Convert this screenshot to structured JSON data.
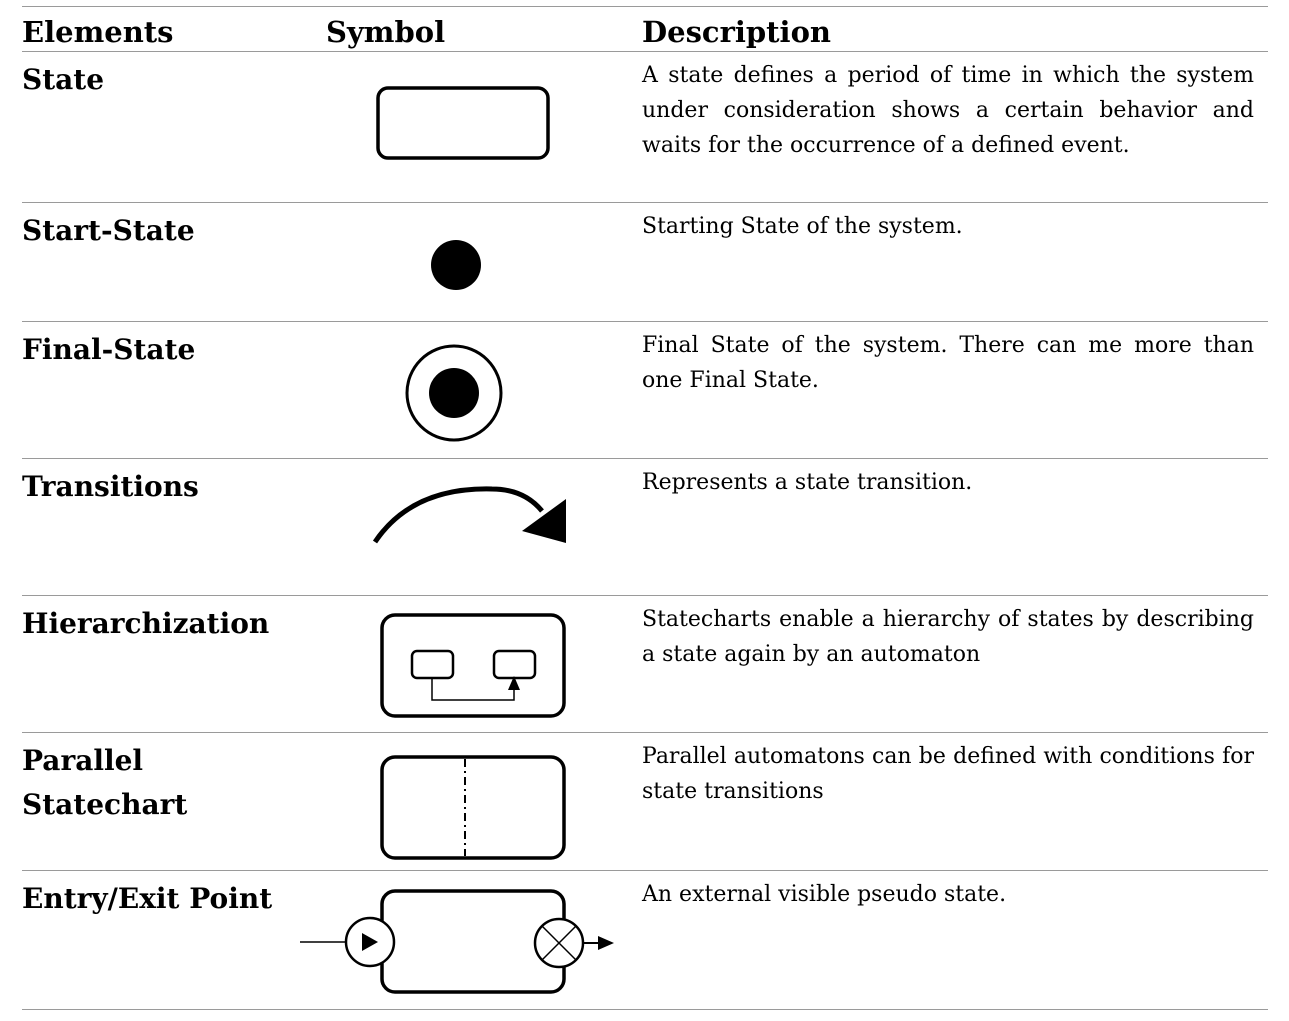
{
  "header": {
    "elements": "Elements",
    "symbol": "Symbol",
    "description": "Description"
  },
  "rows": [
    {
      "element": "State",
      "symbol_icon": "state-rounded-rect-icon",
      "description": "A state defines a period of time in which the system under consideration shows a certain behavior and waits for the occurrence of a defined event."
    },
    {
      "element": "Start-State",
      "symbol_icon": "filled-circle-icon",
      "description": "Starting State of the system."
    },
    {
      "element": "Final-State",
      "symbol_icon": "bullseye-circle-icon",
      "description": "Final State of the system. There can me more than one Final State."
    },
    {
      "element": "Transitions",
      "symbol_icon": "curved-arrow-icon",
      "description": "Represents a state transition."
    },
    {
      "element": "Hierarchization",
      "symbol_icon": "nested-states-icon",
      "description": "Statecharts enable a hierarchy of states by describing a state again by an automaton"
    },
    {
      "element": "Parallel Statechart",
      "symbol_icon": "split-state-icon",
      "description": "Parallel automatons can be defined with conditions for state transitions"
    },
    {
      "element": "Entry/Exit Point",
      "symbol_icon": "entry-exit-point-icon",
      "description": "An external visible pseudo state."
    }
  ]
}
